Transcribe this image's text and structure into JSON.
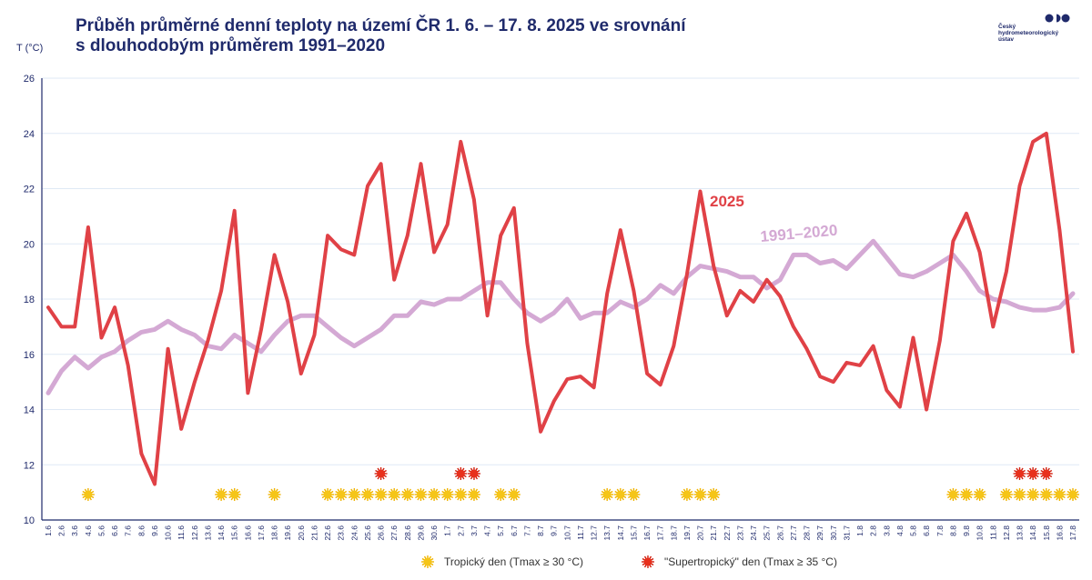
{
  "header": {
    "title_line1": "Průběh průměrné denní teploty na území ČR 1. 6. – 17. 8. 2025 ve srovnání",
    "title_line2": "s dlouhodobým průměrem 1991–2020",
    "ylabel": "T (°C)"
  },
  "logo": {
    "line1": "Český",
    "line2": "hydrometeorologický",
    "line3": "ústav"
  },
  "legend": {
    "tropical": "Tropický den (Tmax ≥ 30 °C)",
    "supertropical": "\"Supertropický\" den (Tmax ≥ 35 °C)"
  },
  "colors": {
    "series_2025": "#e04146",
    "series_normal": "#d4a9d4",
    "sun_yellow": "#f5c518",
    "sun_red": "#e8301c",
    "title": "#1f2a6b"
  },
  "chart_data": {
    "type": "line",
    "ylabel": "T (°C)",
    "ylim": [
      10,
      26
    ],
    "yticks": [
      10,
      12,
      14,
      16,
      18,
      20,
      22,
      24,
      26
    ],
    "grid": true,
    "x": [
      "1.6",
      "2.6",
      "3.6",
      "4.6",
      "5.6",
      "6.6",
      "7.6",
      "8.6",
      "9.6",
      "10.6",
      "11.6",
      "12.6",
      "13.6",
      "14.6",
      "15.6",
      "16.6",
      "17.6",
      "18.6",
      "19.6",
      "20.6",
      "21.6",
      "22.6",
      "23.6",
      "24.6",
      "25.6",
      "26.6",
      "27.6",
      "28.6",
      "29.6",
      "30.6",
      "1.7",
      "2.7",
      "3.7",
      "4.7",
      "5.7",
      "6.7",
      "7.7",
      "8.7",
      "9.7",
      "10.7",
      "11.7",
      "12.7",
      "13.7",
      "14.7",
      "15.7",
      "16.7",
      "17.7",
      "18.7",
      "19.7",
      "20.7",
      "21.7",
      "22.7",
      "23.7",
      "24.7",
      "25.7",
      "26.7",
      "27.7",
      "28.7",
      "29.7",
      "30.7",
      "31.7",
      "1.8",
      "2.8",
      "3.8",
      "4.8",
      "5.8",
      "6.8",
      "7.8",
      "8.8",
      "9.8",
      "10.8",
      "11.8",
      "12.8",
      "13.8",
      "14.8",
      "15.8",
      "16.8",
      "17.8"
    ],
    "series": [
      {
        "name": "2025",
        "values": [
          17.7,
          17.0,
          17.0,
          20.6,
          16.6,
          17.7,
          15.6,
          12.4,
          11.3,
          16.2,
          13.3,
          15.0,
          16.5,
          18.3,
          21.2,
          14.6,
          16.9,
          19.6,
          17.9,
          15.3,
          16.7,
          20.3,
          19.8,
          19.6,
          22.1,
          22.9,
          18.7,
          20.3,
          22.9,
          19.7,
          20.7,
          23.7,
          21.6,
          17.4,
          20.3,
          21.3,
          16.4,
          13.2,
          14.3,
          15.1,
          15.2,
          14.8,
          18.2,
          20.5,
          18.3,
          15.3,
          14.9,
          16.3,
          18.9,
          21.9,
          19.2,
          17.4,
          18.3,
          17.9,
          18.7,
          18.1,
          17.0,
          16.2,
          15.2,
          15.0,
          15.7,
          15.6,
          16.3,
          14.7,
          14.1,
          16.6,
          14.0,
          16.5,
          20.1,
          21.1,
          19.7,
          17.0,
          19.0,
          22.1,
          23.7,
          24.0,
          20.5,
          16.1
        ]
      },
      {
        "name": "1991–2020",
        "values": [
          14.6,
          15.4,
          15.9,
          15.5,
          15.9,
          16.1,
          16.5,
          16.8,
          16.9,
          17.2,
          16.9,
          16.7,
          16.3,
          16.2,
          16.7,
          16.4,
          16.1,
          16.7,
          17.2,
          17.4,
          17.4,
          17.0,
          16.6,
          16.3,
          16.6,
          16.9,
          17.4,
          17.4,
          17.9,
          17.8,
          18.0,
          18.0,
          18.3,
          18.6,
          18.6,
          18.0,
          17.5,
          17.2,
          17.5,
          18.0,
          17.3,
          17.5,
          17.5,
          17.9,
          17.7,
          18.0,
          18.5,
          18.2,
          18.8,
          19.2,
          19.1,
          19.0,
          18.8,
          18.8,
          18.4,
          18.7,
          19.6,
          19.6,
          19.3,
          19.4,
          19.1,
          19.6,
          20.1,
          19.5,
          18.9,
          18.8,
          19.0,
          19.3,
          19.6,
          19.0,
          18.3,
          18.0,
          17.9,
          17.7,
          17.6,
          17.6,
          17.7,
          18.2
        ]
      }
    ],
    "annotations": [
      {
        "text": "2025"
      },
      {
        "text": "1991–2020"
      }
    ],
    "tropical_days": [
      "4.6",
      "14.6",
      "15.6",
      "18.6",
      "22.6",
      "23.6",
      "24.6",
      "25.6",
      "26.6",
      "27.6",
      "28.6",
      "29.6",
      "30.6",
      "1.7",
      "2.7",
      "3.7",
      "5.7",
      "6.7",
      "13.7",
      "14.7",
      "15.7",
      "19.7",
      "20.7",
      "21.7",
      "8.8",
      "9.8",
      "10.8",
      "12.8",
      "13.8",
      "14.8",
      "15.8",
      "16.8",
      "17.8"
    ],
    "supertropical_days": [
      "26.6",
      "2.7",
      "3.7",
      "13.8",
      "14.8",
      "15.8"
    ]
  }
}
